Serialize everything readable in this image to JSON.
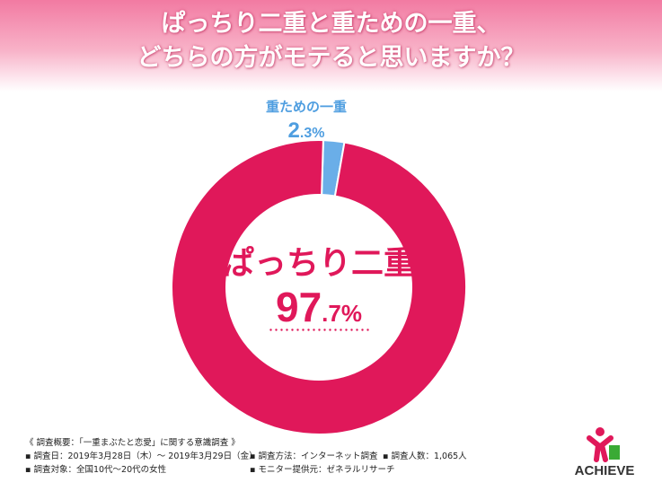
{
  "header": {
    "title_line1": "ぱっちり二重と重ための一重、",
    "title_line2": "どちらの方がモテると思いますか？"
  },
  "chart_data": {
    "type": "pie",
    "donut": true,
    "title": "ぱっちり二重と重ための一重、どちらの方がモテると思いますか？",
    "categories": [
      "ぱっちり二重",
      "重ための一重"
    ],
    "values": [
      97.7,
      2.3
    ],
    "colors": [
      "#e0185a",
      "#6aaee8"
    ],
    "labels": [
      {
        "name": "ぱっちり二重",
        "int": "97",
        "dec": ".7%"
      },
      {
        "name": "重ための一重",
        "int": "2",
        "dec": ".3%"
      }
    ]
  },
  "footer": {
    "heading": "《 調査概要：「一重まぶたと恋愛」に関する意識調査 》",
    "date": "▪ 調査日：2019年3月28日（木）～ 2019年3月29日（金）",
    "method": "▪ 調査方法：インターネット調査",
    "count": "▪ 調査人数：1,065人",
    "target": "▪ 調査対象：全国10代～20代の女性",
    "provider": "▪ モニター提供元：ゼネラルリサーチ"
  },
  "logo": {
    "text": "ACHIEVE",
    "colors": [
      "#e0185a",
      "#3aaa35"
    ]
  }
}
